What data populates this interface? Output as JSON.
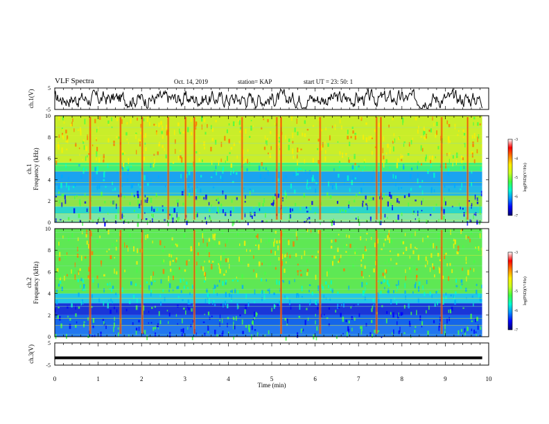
{
  "header": {
    "title": "VLF Spectra",
    "date": "Oct. 14, 2019",
    "station": "station= KAP",
    "start": "start  UT  =   23: 50: 1"
  },
  "chart_data": [
    {
      "type": "line",
      "panel": "ch1-waveform",
      "ylabel": "ch.1(V)",
      "ylim": [
        -5,
        5
      ],
      "ytick_labels": [
        "5",
        "-5"
      ],
      "series": [
        {
          "color": "#000000",
          "style": "noisy waveform around 0 V"
        }
      ]
    },
    {
      "type": "heatmap",
      "panel": "ch1-spectrogram",
      "ylabel": "ch.1\nFrequency (kHz)",
      "ylim": [
        0,
        10
      ],
      "ytick_labels": [
        "0",
        "2",
        "4",
        "6",
        "8",
        "10"
      ],
      "xlim": [
        0,
        10
      ],
      "colorbar": {
        "label": "log(PSD)(V²/Hz)",
        "range": [
          -7,
          -3
        ],
        "tick_labels": [
          "-3",
          "-4",
          "-5",
          "-6",
          "-7"
        ]
      },
      "bands": [
        {
          "from": 0,
          "to": 0.8,
          "color": "mixed"
        },
        {
          "from": 0.8,
          "to": 1.5,
          "color": "#2ad6c8"
        },
        {
          "from": 1.5,
          "to": 2.5,
          "color": "#8fe24a"
        },
        {
          "from": 2.5,
          "to": 3.4,
          "color": "#22b8e6"
        },
        {
          "from": 3.4,
          "to": 4.8,
          "color": "#1aa3f0"
        },
        {
          "from": 4.8,
          "to": 5.6,
          "color": "#3ff07a"
        },
        {
          "from": 5.6,
          "to": 10,
          "color": "#c9ee2a"
        }
      ],
      "bursts_min": [
        0.8,
        1.5,
        2.0,
        2.6,
        3.0,
        3.2,
        4.3,
        5.1,
        5.2,
        6.1,
        7.4,
        7.5,
        8.9,
        9.5
      ]
    },
    {
      "type": "heatmap",
      "panel": "ch2-spectrogram",
      "ylabel": "ch.2\nFrequency (kHz)",
      "ylim": [
        0,
        10
      ],
      "ytick_labels": [
        "0",
        "2",
        "4",
        "6",
        "8",
        "10"
      ],
      "xlim": [
        0,
        10
      ],
      "colorbar": {
        "label": "log(PSD)(V²/Hz)",
        "range": [
          -7,
          -3
        ],
        "tick_labels": [
          "-3",
          "-4",
          "-5",
          "-6",
          "-7"
        ]
      },
      "bands": [
        {
          "from": 0,
          "to": 1.0,
          "color": "#2277f0"
        },
        {
          "from": 1.0,
          "to": 2.0,
          "color": "#1466ea"
        },
        {
          "from": 2.0,
          "to": 3.1,
          "color": "#1a36d8"
        },
        {
          "from": 3.1,
          "to": 4.0,
          "color": "#23c6e6"
        },
        {
          "from": 4.0,
          "to": 10,
          "color": "#5ee854"
        }
      ],
      "bursts_min": [
        0.8,
        1.5,
        2.0,
        3.2,
        5.2,
        6.1,
        7.4,
        8.9
      ]
    },
    {
      "type": "line",
      "panel": "ch3-waveform",
      "ylabel": "ch.3(V)",
      "ylim": [
        -5,
        5
      ],
      "ytick_labels": [
        "5",
        "-5"
      ],
      "series": [
        {
          "value": -1.7,
          "color": "#000000"
        }
      ]
    }
  ],
  "xaxis": {
    "label": "Time  (min)",
    "range": [
      0,
      10
    ],
    "tick_labels": [
      "0",
      "1",
      "2",
      "3",
      "4",
      "5",
      "6",
      "7",
      "8",
      "9",
      "10"
    ]
  },
  "colors": {
    "colormap": [
      "#000080",
      "#0000ff",
      "#00aaff",
      "#00ffcc",
      "#44ff44",
      "#ccff22",
      "#ffee00",
      "#ff7700",
      "#ff0000",
      "#ffffff"
    ]
  }
}
